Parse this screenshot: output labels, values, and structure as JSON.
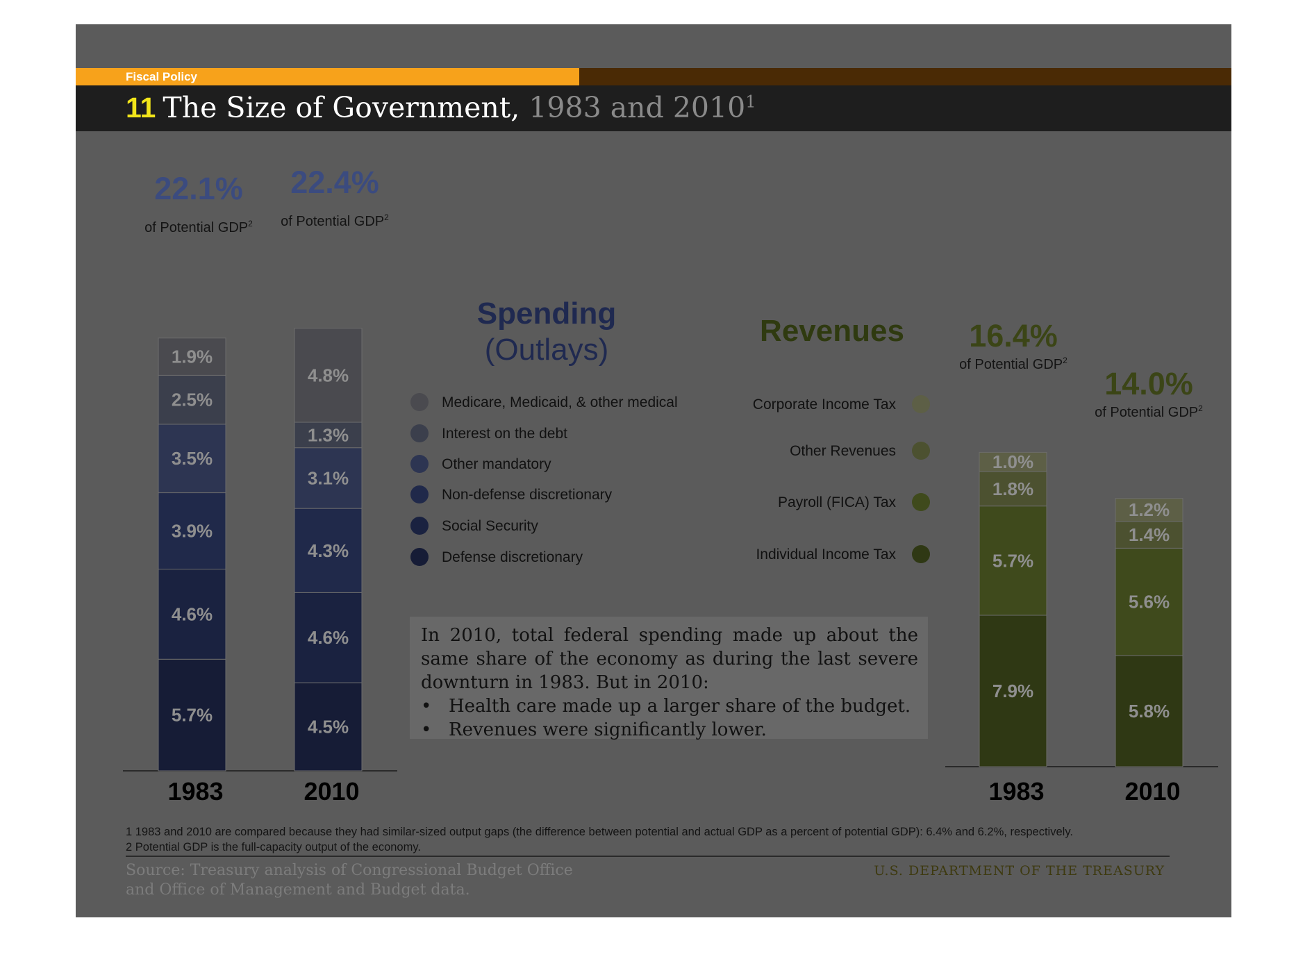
{
  "header": {
    "section": "Fiscal Policy",
    "number": "11",
    "title_main": "The Size of Government,",
    "title_rest": " 1983 and 2010",
    "title_sup": "1"
  },
  "spending_heading": {
    "line1": "Spending",
    "line2": "(Outlays)"
  },
  "revenues_heading": "Revenues",
  "spending_legend": [
    {
      "label": "Medicare, Medicaid, & other medical",
      "color": "#4a4a4f"
    },
    {
      "label": "Interest on the debt",
      "color": "#3b3f4c"
    },
    {
      "label": "Other mandatory",
      "color": "#2d3552"
    },
    {
      "label": "Non-defense discretionary",
      "color": "#20294a"
    },
    {
      "label": "Social Security",
      "color": "#1a2240"
    },
    {
      "label": "Defense discretionary",
      "color": "#161c36"
    }
  ],
  "revenues_legend": [
    {
      "label": "Corporate Income Tax",
      "color": "#5d5f46"
    },
    {
      "label": "Other Revenues",
      "color": "#4c5130"
    },
    {
      "label": "Payroll (FICA) Tax",
      "color": "#3f4a1c"
    },
    {
      "label": "Individual Income Tax",
      "color": "#2f3814"
    }
  ],
  "note": {
    "text": "In 2010, total federal spending made up about the same share of the economy as during the last severe downturn in 1983. But in 2010:",
    "bullets": [
      "Health care made up a larger share of the budget.",
      "Revenues were significantly lower."
    ]
  },
  "footnotes": [
    "1 1983 and 2010 are compared because they had similar-sized output gaps (the difference between potential and actual GDP as a percent of potential GDP): 6.4% and 6.2%, respectively.",
    "2 Potential GDP is the full-capacity output of the economy."
  ],
  "source": [
    "Source: Treasury analysis of Congressional Budget Office",
    "and Office of Management and Budget data."
  ],
  "department": "U.S. DEPARTMENT OF THE TREASURY",
  "chart_data": [
    {
      "type": "bar",
      "stacked": true,
      "title": "Spending (Outlays)",
      "categories": [
        "1983",
        "2010"
      ],
      "totals": [
        "22.1%",
        "22.4%"
      ],
      "total_sub": "of Potential GDP",
      "total_sub_sup": "2",
      "series": [
        {
          "name": "Defense discretionary",
          "values": [
            5.7,
            4.5
          ],
          "labels": [
            "5.7%",
            "4.5%"
          ],
          "color": "#161c36"
        },
        {
          "name": "Social Security",
          "values": [
            4.6,
            4.6
          ],
          "labels": [
            "4.6%",
            "4.6%"
          ],
          "color": "#1a2240"
        },
        {
          "name": "Non-defense discretionary",
          "values": [
            3.9,
            4.3
          ],
          "labels": [
            "3.9%",
            "4.3%"
          ],
          "color": "#20294a"
        },
        {
          "name": "Other mandatory",
          "values": [
            3.5,
            3.1
          ],
          "labels": [
            "3.5%",
            "3.1%"
          ],
          "color": "#2d3552"
        },
        {
          "name": "Interest on the debt",
          "values": [
            2.5,
            1.3
          ],
          "labels": [
            "2.5%",
            "1.3%"
          ],
          "color": "#3b3f4c"
        },
        {
          "name": "Medicare, Medicaid, & other medical",
          "values": [
            1.9,
            4.8
          ],
          "labels": [
            "1.9%",
            "4.8%"
          ],
          "color": "#4a4a4f"
        }
      ]
    },
    {
      "type": "bar",
      "stacked": true,
      "title": "Revenues",
      "categories": [
        "1983",
        "2010"
      ],
      "totals": [
        "16.4%",
        "14.0%"
      ],
      "total_sub": "of Potential GDP",
      "total_sub_sup": "2",
      "series": [
        {
          "name": "Individual Income Tax",
          "values": [
            7.9,
            5.8
          ],
          "labels": [
            "7.9%",
            "5.8%"
          ],
          "color": "#2f3814"
        },
        {
          "name": "Payroll (FICA) Tax",
          "values": [
            5.7,
            5.6
          ],
          "labels": [
            "5.7%",
            "5.6%"
          ],
          "color": "#3f4a1c"
        },
        {
          "name": "Other Revenues",
          "values": [
            1.8,
            1.4
          ],
          "labels": [
            "1.8%",
            "1.4%"
          ],
          "color": "#4c5130"
        },
        {
          "name": "Corporate Income Tax",
          "values": [
            1.0,
            1.2
          ],
          "labels": [
            "1.0%",
            "1.2%"
          ],
          "color": "#5d5f46"
        }
      ]
    }
  ]
}
